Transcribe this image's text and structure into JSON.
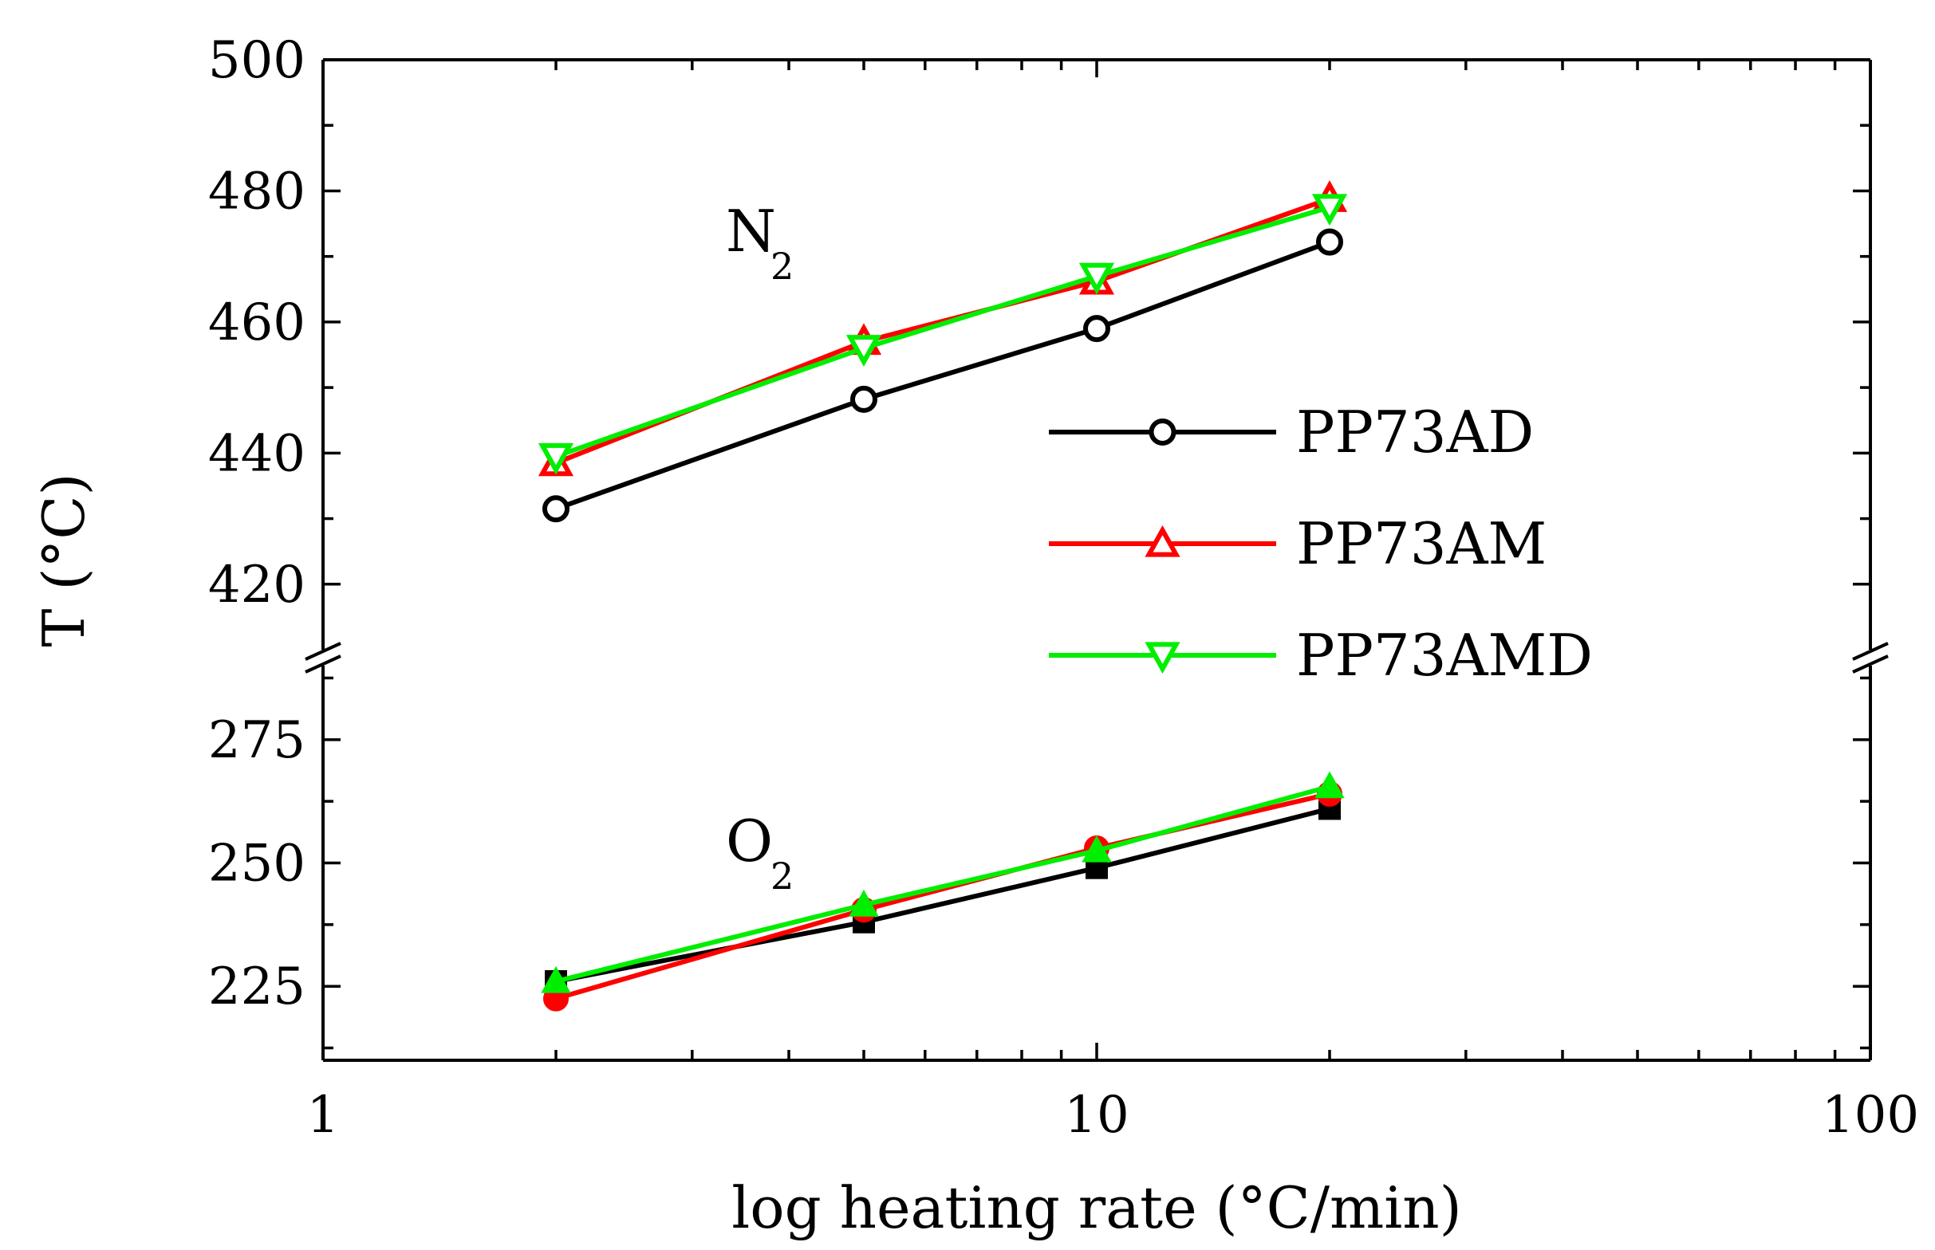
{
  "chart_data": {
    "type": "line",
    "xscale": "log",
    "xlabel": "log heating rate (°C/min)",
    "ylabel": "T (°C)",
    "xlim": [
      1,
      100
    ],
    "x_ticks": [
      {
        "value": 1,
        "label": "1"
      },
      {
        "value": 10,
        "label": "10"
      },
      {
        "value": 100,
        "label": "100"
      }
    ],
    "broken_y_axis": true,
    "upper_panel": {
      "ylim": [
        410,
        500
      ],
      "y_ticks": [
        {
          "value": 420,
          "label": "420"
        },
        {
          "value": 440,
          "label": "440"
        },
        {
          "value": 460,
          "label": "460"
        },
        {
          "value": 480,
          "label": "480"
        },
        {
          "value": 500,
          "label": "500"
        }
      ],
      "annotation": {
        "main": "N",
        "sub": "2"
      },
      "series": [
        {
          "name": "PP73AD",
          "color": "#000000",
          "marker": "open-circle",
          "x": [
            2,
            5,
            10,
            20
          ],
          "values": [
            431.5,
            448.2,
            459,
            472.2
          ]
        },
        {
          "name": "PP73AM",
          "color": "#ff0000",
          "marker": "open-triangle-up",
          "x": [
            2,
            5,
            10,
            20
          ],
          "values": [
            438.5,
            457,
            466.2,
            478.8
          ]
        },
        {
          "name": "PP73AMD",
          "color": "#00ee00",
          "marker": "open-triangle-down",
          "x": [
            2,
            5,
            10,
            20
          ],
          "values": [
            439.5,
            456,
            467,
            477.5
          ]
        }
      ]
    },
    "lower_panel": {
      "ylim": [
        210,
        290
      ],
      "y_ticks": [
        {
          "value": 225,
          "label": "225"
        },
        {
          "value": 250,
          "label": "250"
        },
        {
          "value": 275,
          "label": "275"
        }
      ],
      "annotation": {
        "main": "O",
        "sub": "2"
      },
      "series": [
        {
          "name": "PP73AD",
          "color": "#000000",
          "marker": "filled-square",
          "x": [
            2,
            5,
            10,
            20
          ],
          "values": [
            226,
            238,
            249,
            261
          ]
        },
        {
          "name": "PP73AM",
          "color": "#ff0000",
          "marker": "filled-circle",
          "x": [
            2,
            5,
            10,
            20
          ],
          "values": [
            222.5,
            240.5,
            253,
            264
          ]
        },
        {
          "name": "PP73AMD",
          "color": "#00ee00",
          "marker": "filled-triangle-up",
          "x": [
            2,
            5,
            10,
            20
          ],
          "values": [
            226,
            241.5,
            252.5,
            265.5
          ]
        }
      ]
    },
    "legend": [
      {
        "label": "PP73AD",
        "color": "#000000",
        "marker": "open-circle"
      },
      {
        "label": "PP73AM",
        "color": "#ff0000",
        "marker": "open-triangle-up"
      },
      {
        "label": "PP73AMD",
        "color": "#00ee00",
        "marker": "open-triangle-down"
      }
    ]
  }
}
